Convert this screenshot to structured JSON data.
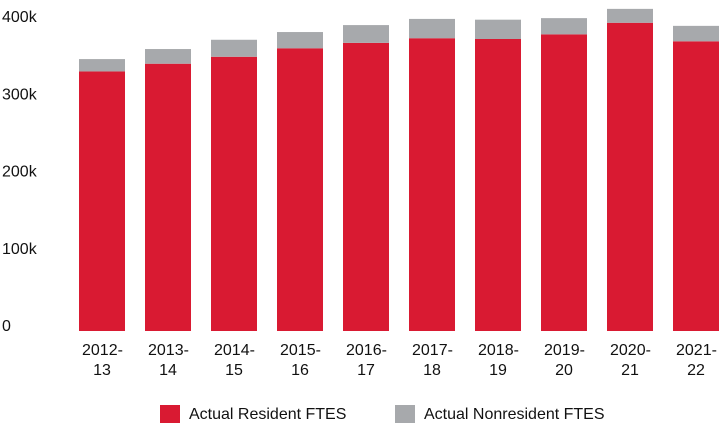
{
  "chart_data": {
    "type": "stacked_bar",
    "categories": [
      "2012-13",
      "2013-14",
      "2014-15",
      "2015-16",
      "2016-17",
      "2017-18",
      "2018-19",
      "2019-20",
      "2020-21",
      "2021-22"
    ],
    "series": [
      {
        "name": "Actual Resident FTES",
        "color": "#d91a32",
        "values": [
          336000,
          346000,
          355000,
          366000,
          373000,
          379000,
          378000,
          384000,
          399000,
          375000
        ]
      },
      {
        "name": "Actual Nonresident FTES",
        "color": "#a7a9ac",
        "values": [
          16000,
          19000,
          22000,
          21000,
          23000,
          25000,
          25000,
          21000,
          18000,
          20000
        ]
      }
    ],
    "ylim": [
      0,
      400000
    ],
    "yticks": [
      0,
      {
        "value": 100000,
        "label": "100k"
      },
      {
        "value": 200000,
        "label": "200k"
      },
      {
        "value": 300000,
        "label": "300k"
      },
      {
        "value": 400000,
        "label": "400k"
      }
    ],
    "grid": false,
    "legend": "bottom"
  }
}
